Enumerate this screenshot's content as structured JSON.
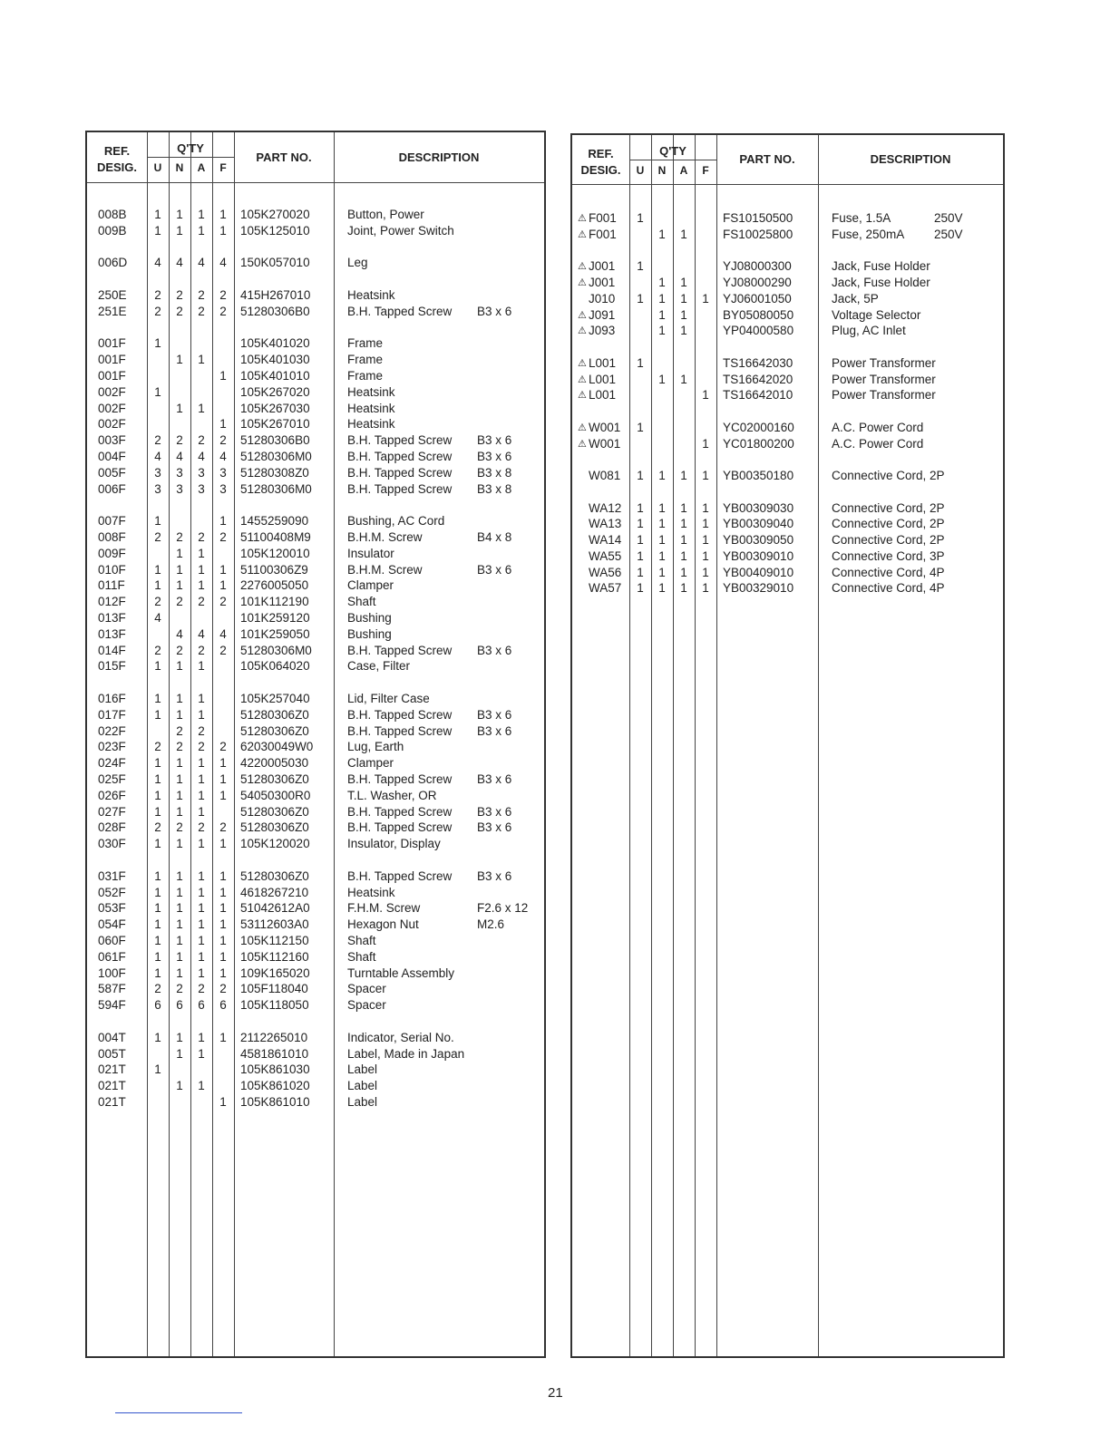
{
  "headers": {
    "ref": "REF.",
    "desig": "DESIG.",
    "qty": "Q'TY",
    "u": "U",
    "n": "N",
    "a": "A",
    "f": "F",
    "part": "PART NO.",
    "desc": "DESCRIPTION"
  },
  "warning_icon": "warning-triangle-icon",
  "left_groups": [
    [
      {
        "ref": "008B",
        "q": [
          "1",
          "1",
          "1",
          "1"
        ],
        "part": "105K270020",
        "desc": "Button, Power",
        "spec": ""
      },
      {
        "ref": "009B",
        "q": [
          "1",
          "1",
          "1",
          "1"
        ],
        "part": "105K125010",
        "desc": "Joint, Power Switch",
        "spec": ""
      }
    ],
    [
      {
        "ref": "006D",
        "q": [
          "4",
          "4",
          "4",
          "4"
        ],
        "part": "150K057010",
        "desc": "Leg",
        "spec": ""
      }
    ],
    [
      {
        "ref": "250E",
        "q": [
          "2",
          "2",
          "2",
          "2"
        ],
        "part": "415H267010",
        "desc": "Heatsink",
        "spec": ""
      },
      {
        "ref": "251E",
        "q": [
          "2",
          "2",
          "2",
          "2"
        ],
        "part": "51280306B0",
        "desc": "B.H. Tapped Screw",
        "spec": "B3 x 6"
      }
    ],
    [
      {
        "ref": "001F",
        "q": [
          "1",
          "",
          "",
          ""
        ],
        "part": "105K401020",
        "desc": "Frame",
        "spec": ""
      },
      {
        "ref": "001F",
        "q": [
          "",
          "1",
          "1",
          ""
        ],
        "part": "105K401030",
        "desc": "Frame",
        "spec": ""
      },
      {
        "ref": "001F",
        "q": [
          "",
          "",
          "",
          "1"
        ],
        "part": "105K401010",
        "desc": "Frame",
        "spec": ""
      },
      {
        "ref": "002F",
        "q": [
          "1",
          "",
          "",
          ""
        ],
        "part": "105K267020",
        "desc": "Heatsink",
        "spec": ""
      },
      {
        "ref": "002F",
        "q": [
          "",
          "1",
          "1",
          ""
        ],
        "part": "105K267030",
        "desc": "Heatsink",
        "spec": ""
      },
      {
        "ref": "002F",
        "q": [
          "",
          "",
          "",
          "1"
        ],
        "part": "105K267010",
        "desc": "Heatsink",
        "spec": ""
      },
      {
        "ref": "003F",
        "q": [
          "2",
          "2",
          "2",
          "2"
        ],
        "part": "51280306B0",
        "desc": "B.H. Tapped Screw",
        "spec": "B3 x 6"
      },
      {
        "ref": "004F",
        "q": [
          "4",
          "4",
          "4",
          "4"
        ],
        "part": "51280306M0",
        "desc": "B.H. Tapped Screw",
        "spec": "B3 x 6"
      },
      {
        "ref": "005F",
        "q": [
          "3",
          "3",
          "3",
          "3"
        ],
        "part": "51280308Z0",
        "desc": "B.H. Tapped Screw",
        "spec": "B3 x 8"
      },
      {
        "ref": "006F",
        "q": [
          "3",
          "3",
          "3",
          "3"
        ],
        "part": "51280306M0",
        "desc": "B.H. Tapped Screw",
        "spec": "B3 x 8"
      }
    ],
    [
      {
        "ref": "007F",
        "q": [
          "1",
          "",
          "",
          "1"
        ],
        "part": "1455259090",
        "desc": "Bushing, AC Cord",
        "spec": ""
      },
      {
        "ref": "008F",
        "q": [
          "2",
          "2",
          "2",
          "2"
        ],
        "part": "51100408M9",
        "desc": "B.H.M. Screw",
        "spec": "B4 x 8"
      },
      {
        "ref": "009F",
        "q": [
          "",
          "1",
          "1",
          ""
        ],
        "part": "105K120010",
        "desc": "Insulator",
        "spec": ""
      },
      {
        "ref": "010F",
        "q": [
          "1",
          "1",
          "1",
          "1"
        ],
        "part": "51100306Z9",
        "desc": "B.H.M. Screw",
        "spec": "B3 x 6"
      },
      {
        "ref": "011F",
        "q": [
          "1",
          "1",
          "1",
          "1"
        ],
        "part": "2276005050",
        "desc": "Clamper",
        "spec": ""
      },
      {
        "ref": "012F",
        "q": [
          "2",
          "2",
          "2",
          "2"
        ],
        "part": "101K112190",
        "desc": "Shaft",
        "spec": ""
      },
      {
        "ref": "013F",
        "q": [
          "4",
          "",
          "",
          ""
        ],
        "part": "101K259120",
        "desc": "Bushing",
        "spec": ""
      },
      {
        "ref": "013F",
        "q": [
          "",
          "4",
          "4",
          "4"
        ],
        "part": "101K259050",
        "desc": "Bushing",
        "spec": ""
      },
      {
        "ref": "014F",
        "q": [
          "2",
          "2",
          "2",
          "2"
        ],
        "part": "51280306M0",
        "desc": "B.H. Tapped Screw",
        "spec": "B3 x 6"
      },
      {
        "ref": "015F",
        "q": [
          "1",
          "1",
          "1",
          ""
        ],
        "part": "105K064020",
        "desc": "Case, Filter",
        "spec": ""
      }
    ],
    [
      {
        "ref": "016F",
        "q": [
          "1",
          "1",
          "1",
          ""
        ],
        "part": "105K257040",
        "desc": "Lid, Filter Case",
        "spec": ""
      },
      {
        "ref": "017F",
        "q": [
          "1",
          "1",
          "1",
          ""
        ],
        "part": "51280306Z0",
        "desc": "B.H. Tapped Screw",
        "spec": "B3 x 6"
      },
      {
        "ref": "022F",
        "q": [
          "",
          "2",
          "2",
          ""
        ],
        "part": "51280306Z0",
        "desc": "B.H. Tapped Screw",
        "spec": "B3 x 6"
      },
      {
        "ref": "023F",
        "q": [
          "2",
          "2",
          "2",
          "2"
        ],
        "part": "62030049W0",
        "desc": "Lug, Earth",
        "spec": ""
      },
      {
        "ref": "024F",
        "q": [
          "1",
          "1",
          "1",
          "1"
        ],
        "part": "4220005030",
        "desc": "Clamper",
        "spec": ""
      },
      {
        "ref": "025F",
        "q": [
          "1",
          "1",
          "1",
          "1"
        ],
        "part": "51280306Z0",
        "desc": "B.H. Tapped Screw",
        "spec": "B3 x 6"
      },
      {
        "ref": "026F",
        "q": [
          "1",
          "1",
          "1",
          "1"
        ],
        "part": "54050300R0",
        "desc": "T.L. Washer, OR",
        "spec": ""
      },
      {
        "ref": "027F",
        "q": [
          "1",
          "1",
          "1",
          ""
        ],
        "part": "51280306Z0",
        "desc": "B.H. Tapped Screw",
        "spec": "B3 x 6"
      },
      {
        "ref": "028F",
        "q": [
          "2",
          "2",
          "2",
          "2"
        ],
        "part": "51280306Z0",
        "desc": "B.H. Tapped Screw",
        "spec": "B3 x 6"
      },
      {
        "ref": "030F",
        "q": [
          "1",
          "1",
          "1",
          "1"
        ],
        "part": "105K120020",
        "desc": "Insulator, Display",
        "spec": ""
      }
    ],
    [
      {
        "ref": "031F",
        "q": [
          "1",
          "1",
          "1",
          "1"
        ],
        "part": "51280306Z0",
        "desc": "B.H. Tapped Screw",
        "spec": "B3 x 6"
      },
      {
        "ref": "052F",
        "q": [
          "1",
          "1",
          "1",
          "1"
        ],
        "part": "4618267210",
        "desc": "Heatsink",
        "spec": ""
      },
      {
        "ref": "053F",
        "q": [
          "1",
          "1",
          "1",
          "1"
        ],
        "part": "51042612A0",
        "desc": "F.H.M. Screw",
        "spec": "F2.6 x 12"
      },
      {
        "ref": "054F",
        "q": [
          "1",
          "1",
          "1",
          "1"
        ],
        "part": "53112603A0",
        "desc": "Hexagon Nut",
        "spec": "M2.6"
      },
      {
        "ref": "060F",
        "q": [
          "1",
          "1",
          "1",
          "1"
        ],
        "part": "105K112150",
        "desc": "Shaft",
        "spec": ""
      },
      {
        "ref": "061F",
        "q": [
          "1",
          "1",
          "1",
          "1"
        ],
        "part": "105K112160",
        "desc": "Shaft",
        "spec": ""
      },
      {
        "ref": "100F",
        "q": [
          "1",
          "1",
          "1",
          "1"
        ],
        "part": "109K165020",
        "desc": "Turntable Assembly",
        "spec": ""
      },
      {
        "ref": "587F",
        "q": [
          "2",
          "2",
          "2",
          "2"
        ],
        "part": "105F118040",
        "desc": "Spacer",
        "spec": ""
      },
      {
        "ref": "594F",
        "q": [
          "6",
          "6",
          "6",
          "6"
        ],
        "part": "105K118050",
        "desc": "Spacer",
        "spec": ""
      }
    ],
    [
      {
        "ref": "004T",
        "q": [
          "1",
          "1",
          "1",
          "1"
        ],
        "part": "2112265010",
        "desc": "Indicator, Serial No.",
        "spec": ""
      },
      {
        "ref": "005T",
        "q": [
          "",
          "1",
          "1",
          ""
        ],
        "part": "4581861010",
        "desc": "Label, Made in Japan",
        "spec": ""
      },
      {
        "ref": "021T",
        "q": [
          "1",
          "",
          "",
          ""
        ],
        "part": "105K861030",
        "desc": "Label",
        "spec": ""
      },
      {
        "ref": "021T",
        "q": [
          "",
          "1",
          "1",
          ""
        ],
        "part": "105K861020",
        "desc": "Label",
        "spec": ""
      },
      {
        "ref": "021T",
        "q": [
          "",
          "",
          "",
          "1"
        ],
        "part": "105K861010",
        "desc": "Label",
        "spec": ""
      }
    ]
  ],
  "right_groups": [
    [
      {
        "warn": true,
        "ref": "F001",
        "q": [
          "1",
          "",
          "",
          ""
        ],
        "part": "FS10150500",
        "desc": "Fuse, 1.5A",
        "spec": "250V"
      },
      {
        "warn": true,
        "ref": "F001",
        "q": [
          "",
          "1",
          "1",
          ""
        ],
        "part": "FS10025800",
        "desc": "Fuse, 250mA",
        "spec": "250V"
      }
    ],
    [
      {
        "warn": true,
        "ref": "J001",
        "q": [
          "1",
          "",
          "",
          ""
        ],
        "part": "YJ08000300",
        "desc": "Jack, Fuse Holder",
        "spec": ""
      },
      {
        "warn": true,
        "ref": "J001",
        "q": [
          "",
          "1",
          "1",
          ""
        ],
        "part": "YJ08000290",
        "desc": "Jack, Fuse Holder",
        "spec": ""
      },
      {
        "warn": false,
        "ref": "J010",
        "q": [
          "1",
          "1",
          "1",
          "1"
        ],
        "part": "YJ06001050",
        "desc": "Jack, 5P",
        "spec": ""
      },
      {
        "warn": true,
        "ref": "J091",
        "q": [
          "",
          "1",
          "1",
          ""
        ],
        "part": "BY05080050",
        "desc": "Voltage Selector",
        "spec": ""
      },
      {
        "warn": true,
        "ref": "J093",
        "q": [
          "",
          "1",
          "1",
          ""
        ],
        "part": "YP04000580",
        "desc": "Plug, AC Inlet",
        "spec": ""
      }
    ],
    [
      {
        "warn": true,
        "ref": "L001",
        "q": [
          "1",
          "",
          "",
          ""
        ],
        "part": "TS16642030",
        "desc": "Power Transformer",
        "spec": ""
      },
      {
        "warn": true,
        "ref": "L001",
        "q": [
          "",
          "1",
          "1",
          ""
        ],
        "part": "TS16642020",
        "desc": "Power Transformer",
        "spec": ""
      },
      {
        "warn": true,
        "ref": "L001",
        "q": [
          "",
          "",
          "",
          "1"
        ],
        "part": "TS16642010",
        "desc": "Power Transformer",
        "spec": ""
      }
    ],
    [
      {
        "warn": true,
        "ref": "W001",
        "q": [
          "1",
          "",
          "",
          ""
        ],
        "part": "YC02000160",
        "desc": "A.C. Power Cord",
        "spec": ""
      },
      {
        "warn": true,
        "ref": "W001",
        "q": [
          "",
          "",
          "",
          "1"
        ],
        "part": "YC01800200",
        "desc": "A.C. Power Cord",
        "spec": ""
      }
    ],
    [
      {
        "warn": false,
        "ref": "W081",
        "q": [
          "1",
          "1",
          "1",
          "1"
        ],
        "part": "YB00350180",
        "desc": "Connective Cord, 2P",
        "spec": ""
      }
    ],
    [
      {
        "warn": false,
        "ref": "WA12",
        "q": [
          "1",
          "1",
          "1",
          "1"
        ],
        "part": "YB00309030",
        "desc": "Connective Cord, 2P",
        "spec": ""
      },
      {
        "warn": false,
        "ref": "WA13",
        "q": [
          "1",
          "1",
          "1",
          "1"
        ],
        "part": "YB00309040",
        "desc": "Connective Cord, 2P",
        "spec": ""
      },
      {
        "warn": false,
        "ref": "WA14",
        "q": [
          "1",
          "1",
          "1",
          "1"
        ],
        "part": "YB00309050",
        "desc": "Connective Cord, 2P",
        "spec": ""
      },
      {
        "warn": false,
        "ref": "WA55",
        "q": [
          "1",
          "1",
          "1",
          "1"
        ],
        "part": "YB00309010",
        "desc": "Connective Cord, 3P",
        "spec": ""
      },
      {
        "warn": false,
        "ref": "WA56",
        "q": [
          "1",
          "1",
          "1",
          "1"
        ],
        "part": "YB00409010",
        "desc": "Connective Cord, 4P",
        "spec": ""
      },
      {
        "warn": false,
        "ref": "WA57",
        "q": [
          "1",
          "1",
          "1",
          "1"
        ],
        "part": "YB00329010",
        "desc": "Connective Cord, 4P",
        "spec": ""
      }
    ]
  ],
  "page_number": "21"
}
